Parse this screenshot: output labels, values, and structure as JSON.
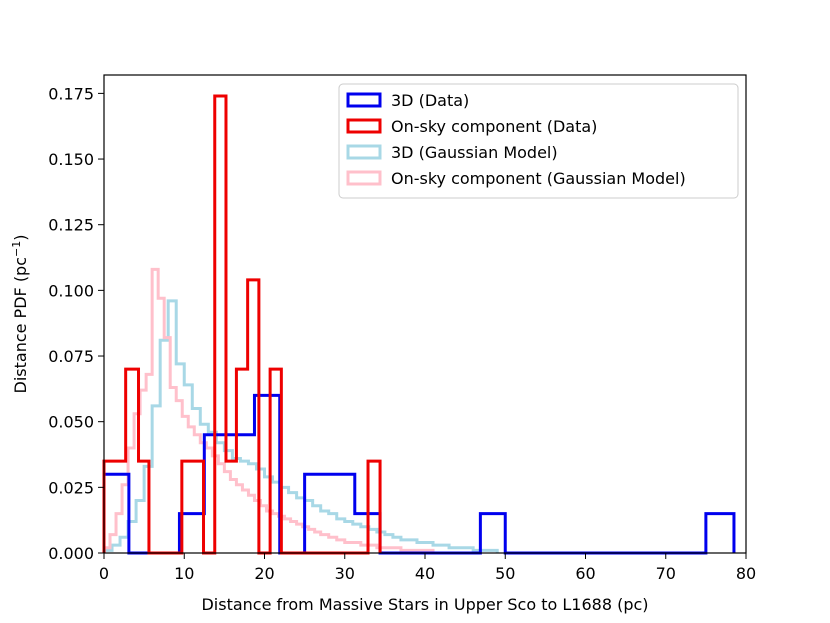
{
  "chart_data": {
    "type": "histogram-step",
    "xlabel": "Distance from Massive Stars in Upper Sco to L1688 (pc)",
    "ylabel_main": "Distance PDF (pc",
    "ylabel_sup": "−1",
    "ylabel_close": ")",
    "xlim": [
      0,
      80
    ],
    "ylim": [
      0,
      0.182
    ],
    "xticks": [
      0,
      10,
      20,
      30,
      40,
      50,
      60,
      70,
      80
    ],
    "xtick_labels": [
      "0",
      "10",
      "20",
      "30",
      "40",
      "50",
      "60",
      "70",
      "80"
    ],
    "yticks": [
      0,
      0.025,
      0.05,
      0.075,
      0.1,
      0.125,
      0.15,
      0.175
    ],
    "ytick_labels": [
      "0.000",
      "0.025",
      "0.050",
      "0.075",
      "0.100",
      "0.125",
      "0.150",
      "0.175"
    ],
    "legend_position": "top-right",
    "series": [
      {
        "name": "3D (Data)",
        "color": "#0000ee",
        "edges": [
          0,
          3.1,
          6.25,
          9.4,
          12.5,
          15.6,
          18.75,
          21.9,
          25.0,
          28.1,
          31.25,
          34.4,
          37.5,
          40.6,
          43.75,
          46.9,
          50.0,
          53.1,
          56.25,
          59.4,
          62.5,
          65.6,
          68.75,
          71.9,
          75.0,
          78.5
        ],
        "values": [
          0.03,
          0.0,
          0.0,
          0.015,
          0.045,
          0.045,
          0.06,
          0.0,
          0.03,
          0.03,
          0.015,
          0.0,
          0.0,
          0.0,
          0.0,
          0.015,
          0.0,
          0.0,
          0.0,
          0.0,
          0.0,
          0.0,
          0.0,
          0.0,
          0.015
        ]
      },
      {
        "name": "On-sky component (Data)",
        "color": "#ee0000",
        "edges": [
          0,
          2.7,
          4.3,
          5.6,
          9.7,
          12.4,
          13.8,
          15.2,
          16.5,
          17.9,
          19.3,
          20.7,
          22.1,
          32.9,
          34.4
        ],
        "values": [
          0.035,
          0.07,
          0.035,
          0.0,
          0.035,
          0.0,
          0.174,
          0.035,
          0.07,
          0.104,
          0.0,
          0.07,
          0.0,
          0.035
        ]
      },
      {
        "name": "3D (Gaussian Model)",
        "color": "#a8d8e6",
        "edges": [
          0,
          1,
          2,
          3,
          4,
          5,
          6,
          7,
          8,
          9,
          10,
          11,
          12,
          13,
          14,
          15,
          16,
          17,
          18,
          19,
          20,
          21,
          22,
          23,
          24,
          25,
          26,
          27,
          28,
          29,
          30,
          31,
          32,
          33,
          34,
          35,
          36,
          37,
          38,
          39,
          40,
          41,
          42,
          43,
          44,
          45,
          46,
          47,
          48,
          49
        ],
        "values": [
          0.001,
          0.003,
          0.006,
          0.012,
          0.02,
          0.033,
          0.056,
          0.081,
          0.096,
          0.072,
          0.064,
          0.055,
          0.049,
          0.046,
          0.042,
          0.039,
          0.036,
          0.035,
          0.034,
          0.032,
          0.029,
          0.027,
          0.025,
          0.023,
          0.021,
          0.02,
          0.018,
          0.016,
          0.015,
          0.013,
          0.012,
          0.011,
          0.01,
          0.009,
          0.008,
          0.007,
          0.006,
          0.005,
          0.005,
          0.004,
          0.004,
          0.003,
          0.003,
          0.002,
          0.002,
          0.002,
          0.001,
          0.001,
          0.001
        ]
      },
      {
        "name": "On-sky component (Gaussian Model)",
        "color": "#ffc0cb",
        "edges": [
          0,
          0.75,
          1.5,
          2.25,
          3,
          3.75,
          4.5,
          5.25,
          6,
          6.75,
          7.5,
          8.25,
          9,
          9.75,
          10.5,
          11.25,
          12,
          12.75,
          13.5,
          14.25,
          15,
          15.75,
          16.5,
          17.25,
          18,
          18.75,
          19.5,
          20.25,
          21,
          21.75,
          22.5,
          23.25,
          24,
          24.75,
          25.5,
          26.25,
          27,
          28,
          29,
          30,
          31,
          32,
          33,
          34,
          35,
          36,
          37,
          38,
          39,
          40,
          41,
          42
        ],
        "values": [
          0.002,
          0.007,
          0.015,
          0.026,
          0.04,
          0.053,
          0.062,
          0.068,
          0.108,
          0.097,
          0.082,
          0.063,
          0.058,
          0.052,
          0.048,
          0.045,
          0.042,
          0.04,
          0.037,
          0.034,
          0.031,
          0.028,
          0.026,
          0.024,
          0.022,
          0.02,
          0.018,
          0.016,
          0.015,
          0.014,
          0.013,
          0.012,
          0.011,
          0.01,
          0.009,
          0.008,
          0.007,
          0.006,
          0.005,
          0.004,
          0.004,
          0.003,
          0.003,
          0.002,
          0.002,
          0.002,
          0.001,
          0.001,
          0.001,
          0.001,
          0.0
        ]
      }
    ]
  }
}
